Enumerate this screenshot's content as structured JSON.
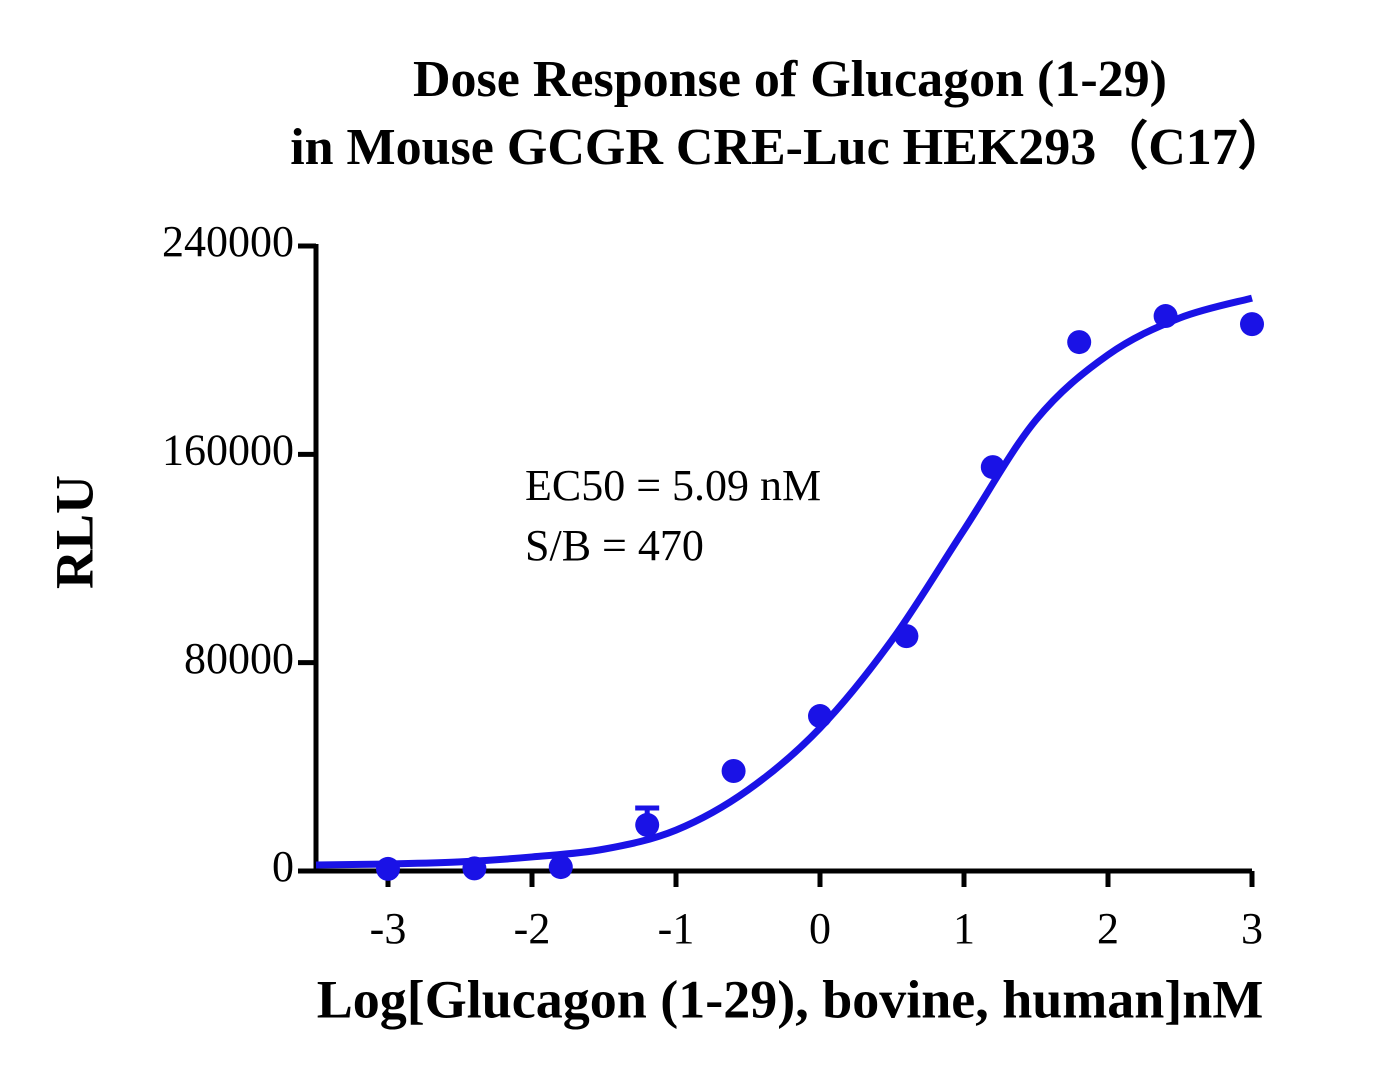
{
  "chart_data": {
    "type": "dose-response",
    "title": [
      "Dose Response of Glucagon (1-29)",
      "in Mouse GCGR CRE-Luc HEK293（C17）"
    ],
    "x_label": "Log[Glucagon (1-29), bovine, human]nM",
    "y_label": "RLU",
    "annotations": [
      "EC50 = 5.09 nM",
      "S/B = 470"
    ],
    "color": "#1a12e6",
    "points": {
      "x": [
        -3,
        -2.4,
        -1.8,
        -1.2,
        -0.6,
        0,
        0.6,
        1.2,
        1.8,
        2.4,
        3
      ],
      "values": [
        800,
        1000,
        1500,
        17700,
        38400,
        59500,
        90200,
        155100,
        203100,
        213100,
        210000
      ],
      "errors": [
        null,
        null,
        null,
        6500,
        null,
        null,
        null,
        null,
        null,
        null,
        null
      ]
    },
    "fit": {
      "x": [
        -3.5,
        -3,
        -2.5,
        -2,
        -1.5,
        -1,
        -0.5,
        0,
        0.5,
        1,
        1.5,
        2,
        2.5,
        3
      ],
      "values": [
        2300,
        2700,
        3500,
        5400,
        8400,
        15700,
        31100,
        54900,
        88700,
        131000,
        173200,
        198200,
        212400,
        220000
      ]
    },
    "xlim": [
      -3.5,
      3
    ],
    "ylim": [
      0,
      240000
    ],
    "xticks": [
      -3,
      -2,
      -1,
      0,
      1,
      2,
      3
    ],
    "yticks": [
      0,
      80000,
      160000,
      240000
    ]
  }
}
